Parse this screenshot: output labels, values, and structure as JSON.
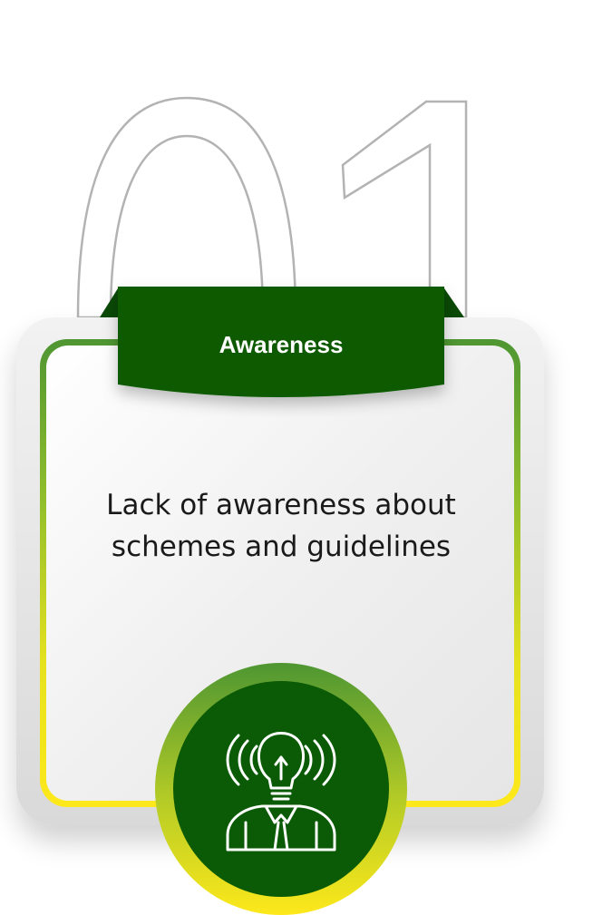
{
  "step": {
    "number": "01",
    "title": "Awareness",
    "description": "Lack of awareness about\nschemes and guidelines",
    "icon": "idea-person-broadcast-icon"
  },
  "colors": {
    "brand_green": "#0a5a06",
    "gradient_green": "#4e9632",
    "gradient_yellow": "#fde81b",
    "outline_gray": "#b3b3b3"
  }
}
